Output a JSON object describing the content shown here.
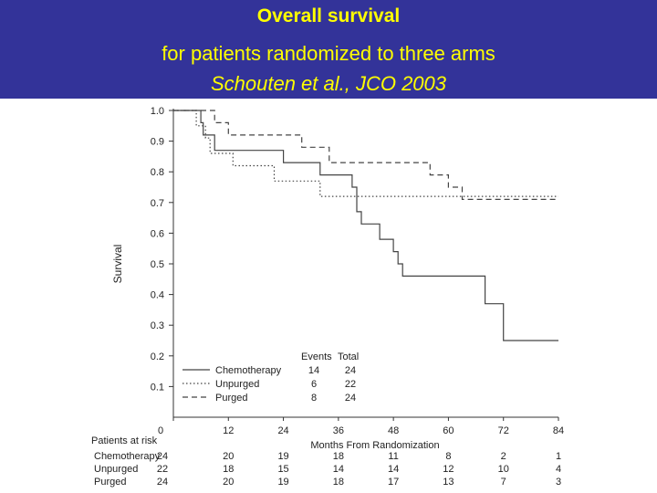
{
  "header": {
    "title": "Overall  survival",
    "subtitle": "for patients randomized to three arms",
    "citation": "Schouten et al., JCO 2003",
    "title_color": "#ffff00",
    "background_color": "#333399"
  },
  "chart_data": {
    "type": "line",
    "subtype": "kaplan-meier-step",
    "xlabel": "Months From Randomization",
    "ylabel": "Survival",
    "xlim": [
      0,
      84
    ],
    "ylim": [
      0,
      1.0
    ],
    "xticks": [
      "0",
      "12",
      "24",
      "36",
      "48",
      "60",
      "72",
      "84"
    ],
    "yticks": [
      "0.1",
      "0.2",
      "0.3",
      "0.4",
      "0.5",
      "0.6",
      "0.7",
      "0.8",
      "0.9",
      "1.0"
    ],
    "grid": false,
    "legend": {
      "placement": "bottom-center",
      "header_events": "Events",
      "header_total": "Total"
    },
    "series": [
      {
        "name": "Chemotherapy",
        "style": "solid",
        "events": "14",
        "total": "24",
        "points": [
          [
            0,
            1.0
          ],
          [
            6,
            1.0
          ],
          [
            6,
            0.96
          ],
          [
            6.5,
            0.96
          ],
          [
            6.5,
            0.92
          ],
          [
            9,
            0.92
          ],
          [
            9,
            0.87
          ],
          [
            24,
            0.87
          ],
          [
            24,
            0.83
          ],
          [
            32,
            0.83
          ],
          [
            32,
            0.79
          ],
          [
            39,
            0.79
          ],
          [
            39,
            0.75
          ],
          [
            40,
            0.75
          ],
          [
            40,
            0.67
          ],
          [
            41,
            0.67
          ],
          [
            41,
            0.63
          ],
          [
            45,
            0.63
          ],
          [
            45,
            0.58
          ],
          [
            48,
            0.58
          ],
          [
            48,
            0.54
          ],
          [
            49,
            0.54
          ],
          [
            49,
            0.5
          ],
          [
            50,
            0.5
          ],
          [
            50,
            0.46
          ],
          [
            68,
            0.46
          ],
          [
            68,
            0.37
          ],
          [
            72,
            0.37
          ],
          [
            72,
            0.25
          ],
          [
            84,
            0.25
          ]
        ]
      },
      {
        "name": "Unpurged",
        "style": "dotted",
        "events": "6",
        "total": "22",
        "points": [
          [
            0,
            1.0
          ],
          [
            5,
            1.0
          ],
          [
            5,
            0.95
          ],
          [
            7,
            0.95
          ],
          [
            7,
            0.91
          ],
          [
            8,
            0.91
          ],
          [
            8,
            0.86
          ],
          [
            13,
            0.86
          ],
          [
            13,
            0.82
          ],
          [
            22,
            0.82
          ],
          [
            22,
            0.77
          ],
          [
            32,
            0.77
          ],
          [
            32,
            0.72
          ],
          [
            84,
            0.72
          ]
        ]
      },
      {
        "name": "Purged",
        "style": "dashed",
        "events": "8",
        "total": "24",
        "points": [
          [
            0,
            1.0
          ],
          [
            9,
            1.0
          ],
          [
            9,
            0.96
          ],
          [
            12,
            0.96
          ],
          [
            12,
            0.92
          ],
          [
            28,
            0.92
          ],
          [
            28,
            0.88
          ],
          [
            34,
            0.88
          ],
          [
            34,
            0.83
          ],
          [
            56,
            0.83
          ],
          [
            56,
            0.79
          ],
          [
            60,
            0.79
          ],
          [
            60,
            0.75
          ],
          [
            63,
            0.75
          ],
          [
            63,
            0.71
          ],
          [
            84,
            0.71
          ]
        ]
      }
    ],
    "risk_table": {
      "title": "Patients at risk",
      "timepoints": [
        0,
        12,
        24,
        36,
        48,
        60,
        72,
        84
      ],
      "rows": [
        {
          "label": "Chemotherapy",
          "values": [
            "24",
            "20",
            "19",
            "18",
            "11",
            "8",
            "2",
            "1"
          ]
        },
        {
          "label": "Unpurged",
          "values": [
            "22",
            "18",
            "15",
            "14",
            "14",
            "12",
            "10",
            "4"
          ]
        },
        {
          "label": "Purged",
          "values": [
            "24",
            "20",
            "19",
            "18",
            "17",
            "13",
            "7",
            "3"
          ]
        }
      ]
    }
  }
}
